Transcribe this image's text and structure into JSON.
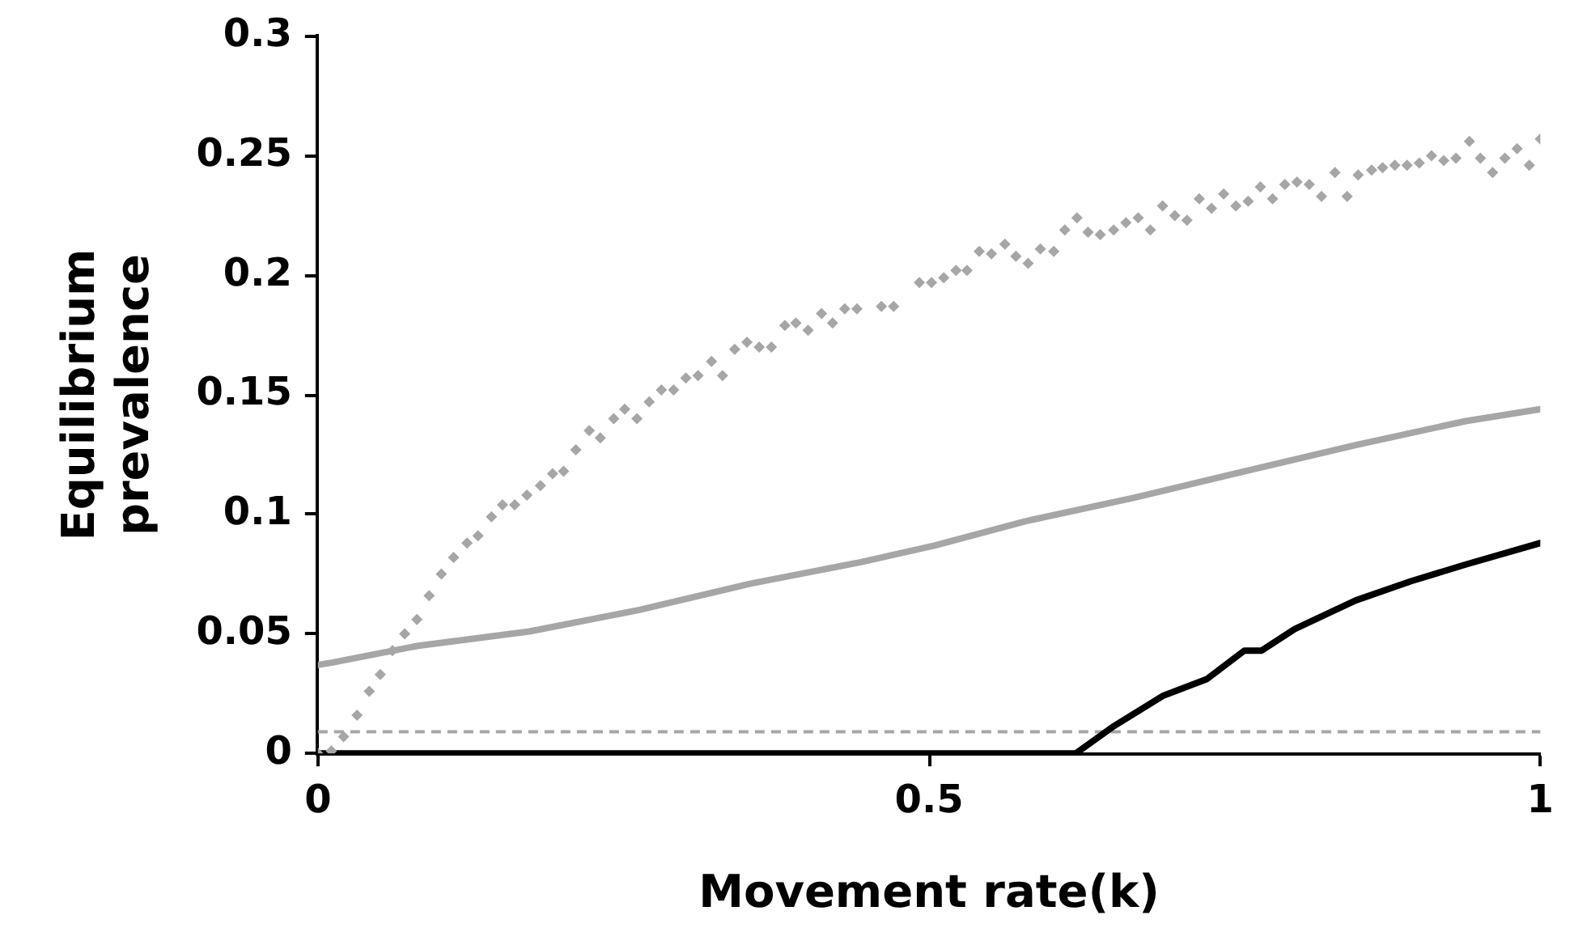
{
  "chart_data": {
    "type": "line",
    "xlabel": "Movement rate(k)",
    "ylabel": "Equilibrium prevalence",
    "xlim": [
      0,
      1
    ],
    "xticks": [
      0,
      0.5,
      1
    ],
    "ylim": [
      0,
      0.3
    ],
    "yticks": [
      0,
      0.05,
      0.1,
      0.15,
      0.2,
      0.25,
      0.3
    ],
    "grid": false,
    "legend": false,
    "series": [
      {
        "type": "scatter",
        "marker": "diamond",
        "color": "#a6a6a6",
        "x": [
          0,
          0.011,
          0.021,
          0.032,
          0.042,
          0.051,
          0.061,
          0.071,
          0.081,
          0.091,
          0.101,
          0.111,
          0.122,
          0.131,
          0.142,
          0.151,
          0.161,
          0.171,
          0.182,
          0.192,
          0.201,
          0.211,
          0.222,
          0.231,
          0.242,
          0.251,
          0.261,
          0.271,
          0.281,
          0.291,
          0.301,
          0.311,
          0.322,
          0.331,
          0.341,
          0.351,
          0.361,
          0.371,
          0.382,
          0.391,
          0.401,
          0.412,
          0.421,
          0.431,
          0.441,
          0.461,
          0.471,
          0.492,
          0.502,
          0.512,
          0.522,
          0.531,
          0.541,
          0.551,
          0.562,
          0.571,
          0.581,
          0.591,
          0.602,
          0.611,
          0.621,
          0.63,
          0.64,
          0.651,
          0.661,
          0.671,
          0.681,
          0.691,
          0.701,
          0.711,
          0.721,
          0.731,
          0.741,
          0.751,
          0.761,
          0.771,
          0.781,
          0.791,
          0.801,
          0.811,
          0.821,
          0.832,
          0.842,
          0.851,
          0.862,
          0.871,
          0.881,
          0.891,
          0.901,
          0.911,
          0.921,
          0.931,
          0.942,
          0.951,
          0.961,
          0.971,
          0.981,
          0.991,
          1
        ],
        "values": [
          0,
          0.001,
          0.007,
          0.016,
          0.026,
          0.033,
          0.043,
          0.05,
          0.056,
          0.066,
          0.075,
          0.082,
          0.088,
          0.091,
          0.099,
          0.104,
          0.104,
          0.108,
          0.112,
          0.117,
          0.118,
          0.127,
          0.135,
          0.132,
          0.14,
          0.144,
          0.14,
          0.147,
          0.152,
          0.152,
          0.157,
          0.158,
          0.164,
          0.158,
          0.169,
          0.172,
          0.17,
          0.17,
          0.179,
          0.18,
          0.177,
          0.184,
          0.18,
          0.186,
          0.186,
          0.187,
          0.187,
          0.197,
          0.197,
          0.199,
          0.202,
          0.202,
          0.21,
          0.209,
          0.213,
          0.208,
          0.205,
          0.211,
          0.21,
          0.219,
          0.224,
          0.218,
          0.217,
          0.219,
          0.222,
          0.224,
          0.219,
          0.229,
          0.225,
          0.223,
          0.232,
          0.228,
          0.234,
          0.229,
          0.231,
          0.237,
          0.232,
          0.238,
          0.239,
          0.238,
          0.233,
          0.243,
          0.233,
          0.242,
          0.244,
          0.245,
          0.246,
          0.246,
          0.247,
          0.25,
          0.248,
          0.249,
          0.256,
          0.249,
          0.243,
          0.249,
          0.253,
          0.246,
          0.257
        ]
      },
      {
        "marker": "none",
        "color": "#a6a6a6",
        "x": [
          0,
          0.012,
          0.082,
          0.173,
          0.263,
          0.354,
          0.444,
          0.505,
          0.578,
          0.668,
          0.758,
          0.849,
          0.939,
          1
        ],
        "values": [
          0.037,
          0.038,
          0.045,
          0.051,
          0.06,
          0.071,
          0.08,
          0.087,
          0.097,
          0.107,
          0.118,
          0.129,
          0.139,
          0.144
        ]
      },
      {
        "marker": "none",
        "color": "#000000",
        "x": [
          0,
          0.62,
          0.65,
          0.691,
          0.727,
          0.758,
          0.772,
          0.799,
          0.849,
          0.894,
          0.939,
          1
        ],
        "values": [
          0,
          0,
          0.011,
          0.024,
          0.031,
          0.043,
          0.043,
          0.052,
          0.064,
          0.072,
          0.079,
          0.088
        ]
      }
    ],
    "ref_lines": [
      {
        "axis": "y",
        "value": 0.009,
        "color": "#a6a6a6",
        "line_style": "dashed"
      }
    ]
  }
}
